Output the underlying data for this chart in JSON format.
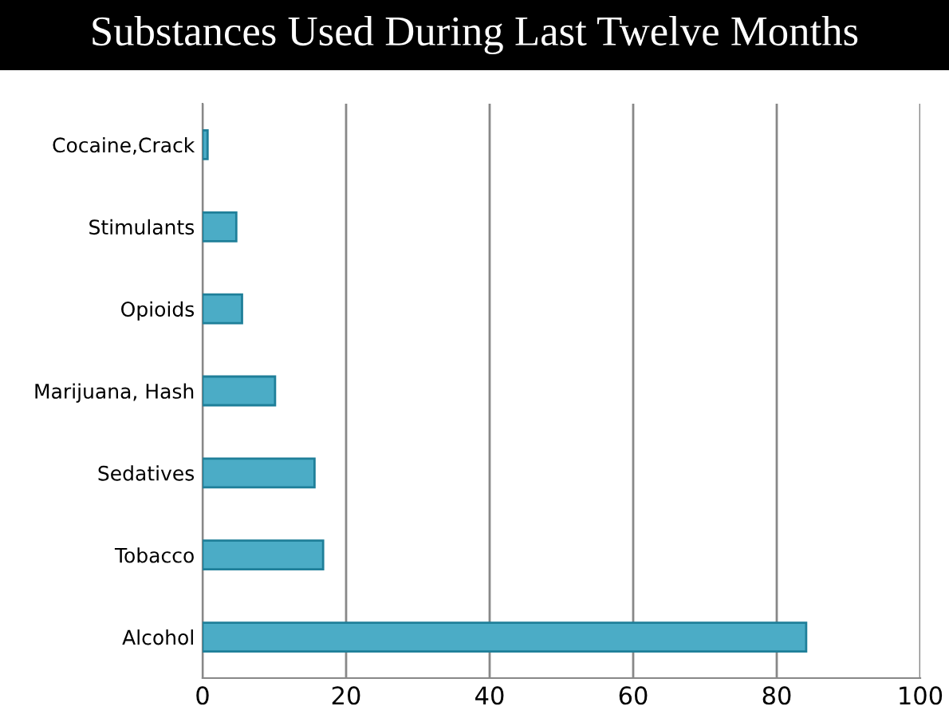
{
  "chart_data": {
    "type": "bar",
    "orientation": "horizontal",
    "title": "Substances Used During Last Twelve Months",
    "categories": [
      "Cocaine,Crack",
      "Stimulants",
      "Opioids",
      "Marijuana, Hash",
      "Sedatives",
      "Tobacco",
      "Alcohol"
    ],
    "values": [
      0.7,
      4.7,
      5.5,
      10.1,
      15.6,
      16.8,
      84.1
    ],
    "color": "#4bacc6",
    "xlim": [
      0,
      100
    ],
    "xticks": [
      0,
      20,
      40,
      60,
      80,
      100
    ],
    "grid": "x",
    "legend": false
  }
}
